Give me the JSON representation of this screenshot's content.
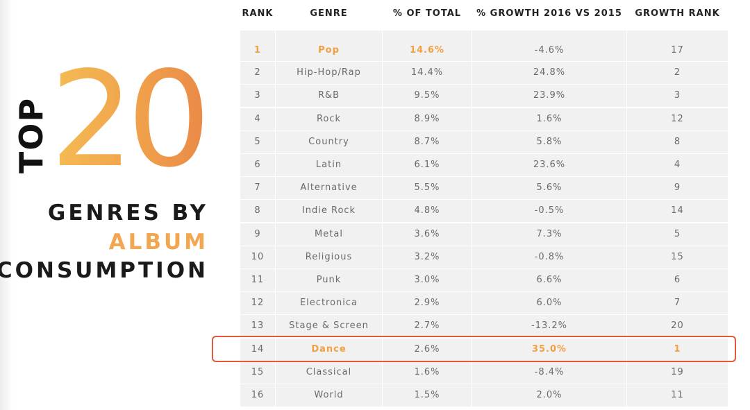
{
  "title": {
    "top_word": "TOP",
    "number": "20",
    "line1": "GENRES BY",
    "line2": "ALBUM",
    "line3": "CONSUMPTION"
  },
  "colors": {
    "accent": "#f2a650",
    "highlight_border": "#e0593a",
    "row_bg": "#f1f1f1",
    "text": "#6a6a6a"
  },
  "table": {
    "headers": [
      "RANK",
      "GENRE",
      "% OF TOTAL",
      "% GROWTH 2016 VS 2015",
      "GROWTH RANK"
    ],
    "rows": [
      [
        "1",
        "Pop",
        "14.6%",
        "-4.6%",
        "17"
      ],
      [
        "2",
        "Hip-Hop/Rap",
        "14.4%",
        "24.8%",
        "2"
      ],
      [
        "3",
        "R&B",
        "9.5%",
        "23.9%",
        "3"
      ],
      [
        "4",
        "Rock",
        "8.9%",
        "1.6%",
        "12"
      ],
      [
        "5",
        "Country",
        "8.7%",
        "5.8%",
        "8"
      ],
      [
        "6",
        "Latin",
        "6.1%",
        "23.6%",
        "4"
      ],
      [
        "7",
        "Alternative",
        "5.5%",
        "5.6%",
        "9"
      ],
      [
        "8",
        "Indie Rock",
        "4.8%",
        "-0.5%",
        "14"
      ],
      [
        "9",
        "Metal",
        "3.6%",
        "7.3%",
        "5"
      ],
      [
        "10",
        "Religious",
        "3.2%",
        "-0.8%",
        "15"
      ],
      [
        "11",
        "Punk",
        "3.0%",
        "6.6%",
        "6"
      ],
      [
        "12",
        "Electronica",
        "2.9%",
        "6.0%",
        "7"
      ],
      [
        "13",
        "Stage & Screen",
        "2.7%",
        "-13.2%",
        "20"
      ],
      [
        "14",
        "Dance",
        "2.6%",
        "35.0%",
        "1"
      ],
      [
        "15",
        "Classical",
        "1.6%",
        "-8.4%",
        "19"
      ],
      [
        "16",
        "World",
        "1.5%",
        "2.0%",
        "11"
      ]
    ]
  }
}
